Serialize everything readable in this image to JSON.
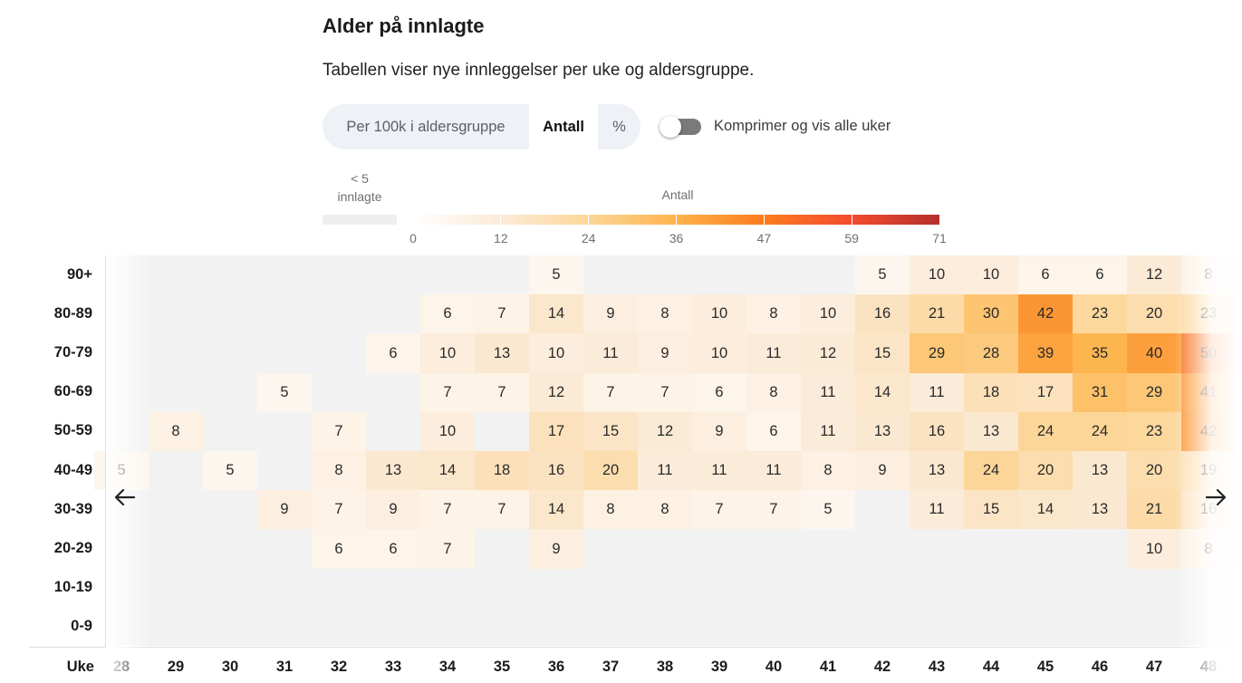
{
  "header": {
    "title": "Alder på innlagte",
    "subtitle": "Tabellen viser nye innleggelser per uke og aldersgruppe."
  },
  "controls": {
    "segment_options": [
      "Per 100k i aldersgruppe",
      "Antall",
      "%"
    ],
    "segment_selected": "Antall",
    "toggle_label": "Komprimer og vis alle uker",
    "toggle_on": false
  },
  "legend": {
    "small_label_line1": "< 5",
    "small_label_line2": "innlagte",
    "title": "Antall",
    "ticks": [
      "0",
      "12",
      "24",
      "36",
      "47",
      "59",
      "71"
    ],
    "colors": [
      "#ffffff",
      "#fbead6",
      "#fcd79a",
      "#fdb34d",
      "#fc7e1f",
      "#f34c2f",
      "#b52f2c"
    ],
    "empty_color": "#efefef"
  },
  "icons": {
    "prev": "arrow-left-icon",
    "next": "arrow-right-icon"
  },
  "chart_data": {
    "type": "heatmap",
    "title": "Alder på innlagte",
    "x_axis_label": "Uke",
    "x": [
      "28",
      "29",
      "30",
      "31",
      "32",
      "33",
      "34",
      "35",
      "36",
      "37",
      "38",
      "39",
      "40",
      "41",
      "42",
      "43",
      "44",
      "45",
      "46",
      "47",
      "48"
    ],
    "y": [
      "90+",
      "80-89",
      "70-79",
      "60-69",
      "50-59",
      "40-49",
      "30-39",
      "20-29",
      "10-19",
      "0-9"
    ],
    "values": [
      [
        null,
        null,
        null,
        null,
        null,
        null,
        null,
        null,
        5,
        null,
        null,
        null,
        null,
        null,
        5,
        10,
        10,
        6,
        6,
        12,
        8
      ],
      [
        null,
        null,
        null,
        null,
        null,
        null,
        6,
        7,
        14,
        9,
        8,
        10,
        8,
        10,
        16,
        21,
        30,
        42,
        23,
        20,
        23
      ],
      [
        null,
        null,
        null,
        null,
        null,
        6,
        10,
        13,
        10,
        11,
        9,
        10,
        11,
        12,
        15,
        29,
        28,
        39,
        35,
        40,
        50
      ],
      [
        null,
        null,
        null,
        5,
        null,
        null,
        7,
        7,
        12,
        7,
        7,
        6,
        8,
        11,
        14,
        11,
        18,
        17,
        31,
        29,
        41
      ],
      [
        null,
        8,
        null,
        null,
        7,
        null,
        10,
        null,
        17,
        15,
        12,
        9,
        6,
        11,
        13,
        16,
        13,
        24,
        24,
        23,
        42
      ],
      [
        5,
        null,
        5,
        null,
        8,
        13,
        14,
        18,
        16,
        20,
        11,
        11,
        11,
        8,
        9,
        13,
        24,
        20,
        13,
        20,
        19
      ],
      [
        null,
        null,
        null,
        9,
        7,
        9,
        7,
        7,
        14,
        8,
        8,
        7,
        7,
        5,
        null,
        11,
        15,
        14,
        13,
        21,
        16
      ],
      [
        null,
        null,
        null,
        null,
        6,
        6,
        7,
        null,
        9,
        null,
        null,
        null,
        null,
        null,
        null,
        null,
        null,
        null,
        null,
        10,
        8
      ],
      [
        null,
        null,
        null,
        null,
        null,
        null,
        null,
        null,
        null,
        null,
        null,
        null,
        null,
        null,
        null,
        null,
        null,
        null,
        null,
        null,
        null
      ],
      [
        null,
        null,
        null,
        null,
        null,
        null,
        null,
        null,
        null,
        null,
        null,
        null,
        null,
        null,
        null,
        null,
        null,
        null,
        null,
        null,
        null
      ]
    ],
    "color_scale": {
      "min": 0,
      "max": 71
    },
    "legend_position": "top"
  }
}
